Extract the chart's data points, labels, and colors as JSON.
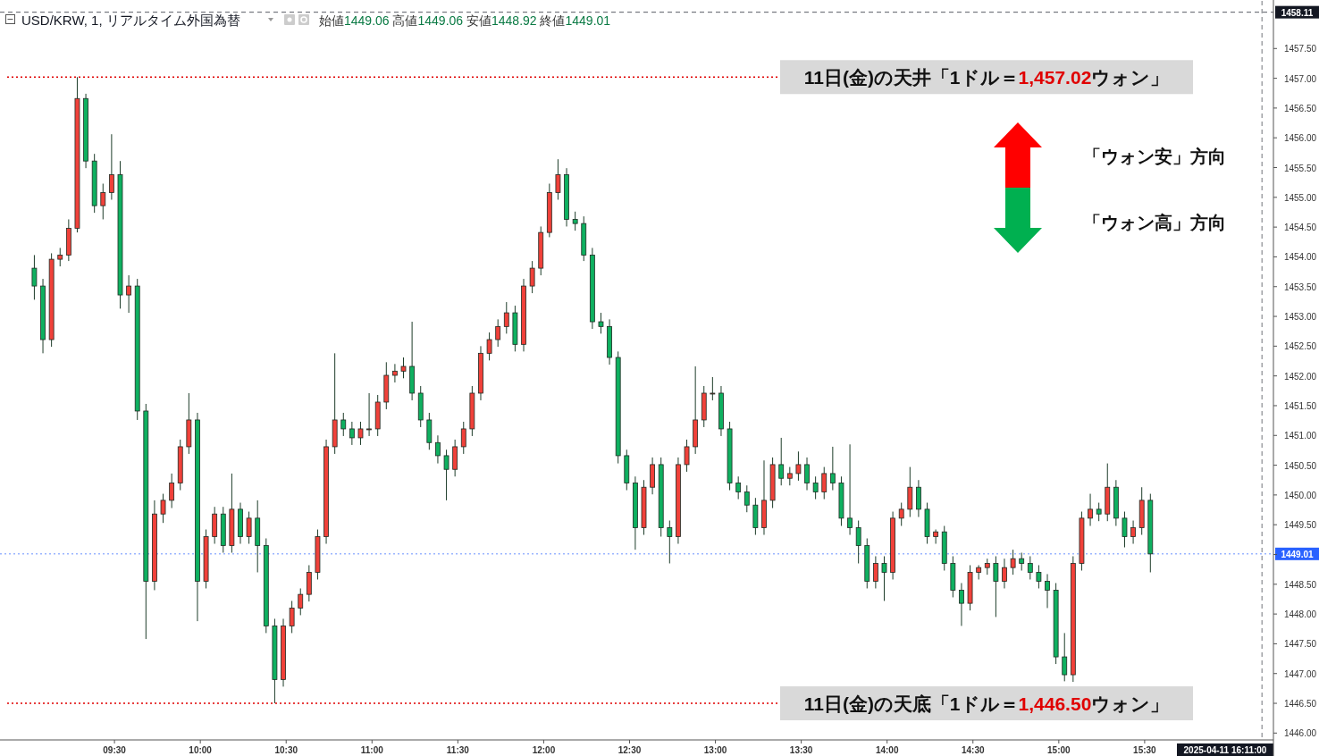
{
  "chart_data": {
    "type": "candlestick",
    "title": "USD/KRW, 1, リアルタイム外国為替",
    "subtitle": "始値1449.06 高値1449.06 安値1448.92 終値1449.01",
    "annotations": [
      "「ウォン安」方向",
      "「ウォン高」方向"
    ],
    "colors": [
      "#0fb060",
      "#0fb060",
      "#f0413a",
      "#f0413a",
      "#f0413a",
      "#f0413a",
      "#0fb060",
      "#0fb060",
      "#f0413a",
      "#f0413a",
      "#0fb060",
      "#f0413a",
      "#0fb060",
      "#0fb060",
      "#f0413a",
      "#f0413a",
      "#f0413a",
      "#f0413a",
      "#f0413a",
      "#0fb060",
      "#f0413a",
      "#f0413a",
      "#0fb060",
      "#f0413a",
      "#0fb060",
      "#f0413a",
      "#0fb060",
      "#0fb060",
      "#0fb060",
      "#f0413a",
      "#f0413a",
      "#f0413a",
      "#f0413a",
      "#f0413a",
      "#f0413a",
      "#f0413a",
      "#0fb060",
      "#0fb060",
      "#f0413a",
      "#f0413a",
      "#f0413a",
      "#f0413a",
      "#f0413a",
      "#f0413a",
      "#0fb060",
      "#0fb060",
      "#0fb060",
      "#0fb060",
      "#0fb060",
      "#f0413a",
      "#f0413a",
      "#f0413a",
      "#f0413a",
      "#f0413a",
      "#f0413a",
      "#f0413a",
      "#0fb060",
      "#f0413a",
      "#f0413a",
      "#f0413a",
      "#f0413a",
      "#f0413a",
      "#0fb060",
      "#0fb060",
      "#0fb060",
      "#0fb060",
      "#0fb060",
      "#0fb060",
      "#0fb060",
      "#0fb060",
      "#0fb060",
      "#f0413a",
      "#f0413a",
      "#0fb060",
      "#0fb060",
      "#f0413a",
      "#f0413a",
      "#f0413a",
      "#f0413a",
      "#f0413a",
      "#0fb060",
      "#0fb060",
      "#0fb060",
      "#0fb060",
      "#0fb060",
      "#f0413a",
      "#f0413a",
      "#0fb060",
      "#f0413a",
      "#f0413a",
      "#0fb060",
      "#0fb060",
      "#f0413a",
      "#0fb060",
      "#0fb060",
      "#0fb060",
      "#0fb060",
      "#0fb060",
      "#f0413a",
      "#0fb060",
      "#f0413a",
      "#f0413a",
      "#f0413a",
      "#0fb060",
      "#0fb060",
      "#f0413a",
      "#0fb060",
      "#0fb060",
      "#0fb060",
      "#f0413a",
      "#f0413a",
      "#f0413a",
      "#0fb060",
      "#f0413a",
      "#f0413a",
      "#0fb060",
      "#0fb060",
      "#0fb060",
      "#0fb060",
      "#0fb060",
      "#0fb060",
      "#f0413a",
      "#f0413a",
      "#f0413a",
      "#0fb060",
      "#f0413a",
      "#0fb060",
      "#0fb060",
      "#f0413a",
      "#f0413a",
      "#0fb060"
    ],
    "x": [
      9.0333,
      9.0833,
      9.1333,
      9.1833,
      9.2333,
      9.2833,
      9.3333,
      9.3833,
      9.4333,
      9.4833,
      9.5333,
      9.5833,
      9.6333,
      9.6833,
      9.7333,
      9.7833,
      9.8333,
      9.8833,
      9.9333,
      9.9833,
      10.0333,
      10.0833,
      10.1333,
      10.1833,
      10.2333,
      10.2833,
      10.3333,
      10.3833,
      10.4333,
      10.4833,
      10.5333,
      10.5833,
      10.6333,
      10.6833,
      10.7333,
      10.7833,
      10.8333,
      10.8833,
      10.9333,
      10.9833,
      11.0333,
      11.0833,
      11.1333,
      11.1833,
      11.2333,
      11.2833,
      11.3333,
      11.3833,
      11.4333,
      11.4833,
      11.5333,
      11.5833,
      11.6333,
      11.6833,
      11.7333,
      11.7833,
      11.8333,
      11.8833,
      11.9333,
      11.9833,
      12.0333,
      12.0833,
      12.1333,
      12.1833,
      12.2333,
      12.2833,
      12.3333,
      12.3833,
      12.4333,
      12.4833,
      12.5333,
      12.5833,
      12.6333,
      12.6833,
      12.7333,
      12.7833,
      12.8333,
      12.8833,
      12.9333,
      12.9833,
      13.0333,
      13.0833,
      13.1333,
      13.1833,
      13.2333,
      13.2833,
      13.3333,
      13.3833,
      13.4333,
      13.4833,
      13.5333,
      13.5833,
      13.6333,
      13.6833,
      13.7333,
      13.7833,
      13.8333,
      13.8833,
      13.9333,
      13.9833,
      14.0333,
      14.0833,
      14.1333,
      14.1833,
      14.2333,
      14.2833,
      14.3333,
      14.3833,
      14.4333,
      14.4833,
      14.5333,
      14.5833,
      14.6333,
      14.6833,
      14.7333,
      14.7833,
      14.8333,
      14.8833,
      14.9333,
      14.9833,
      15.0333,
      15.0833,
      15.1333,
      15.1833,
      15.2333,
      15.2833,
      15.3333,
      15.3833,
      15.4333,
      15.4833,
      15.5333
    ],
    "ohlc": [
      [
        1453.81,
        1454.03,
        1453.28,
        1453.51
      ],
      [
        1453.51,
        1453.63,
        1452.38,
        1452.61
      ],
      [
        1452.61,
        1454.06,
        1452.49,
        1453.96
      ],
      [
        1453.96,
        1454.15,
        1453.84,
        1454.03
      ],
      [
        1454.03,
        1454.63,
        1453.93,
        1454.48
      ],
      [
        1454.48,
        1457.02,
        1454.41,
        1456.66
      ],
      [
        1456.66,
        1456.74,
        1455.49,
        1455.61
      ],
      [
        1455.61,
        1455.73,
        1454.74,
        1454.86
      ],
      [
        1454.86,
        1455.23,
        1454.63,
        1455.08
      ],
      [
        1455.08,
        1456.06,
        1454.96,
        1455.38
      ],
      [
        1455.38,
        1455.61,
        1453.13,
        1453.36
      ],
      [
        1453.36,
        1453.69,
        1453.06,
        1453.51
      ],
      [
        1453.51,
        1453.63,
        1451.26,
        1451.41
      ],
      [
        1451.41,
        1451.53,
        1447.58,
        1448.55
      ],
      [
        1448.55,
        1449.91,
        1448.4,
        1449.68
      ],
      [
        1449.68,
        1450.02,
        1449.53,
        1449.91
      ],
      [
        1449.91,
        1450.36,
        1449.78,
        1450.2
      ],
      [
        1450.2,
        1450.93,
        1450.08,
        1450.81
      ],
      [
        1450.81,
        1451.71,
        1450.69,
        1451.26
      ],
      [
        1451.26,
        1451.38,
        1447.88,
        1448.55
      ],
      [
        1448.55,
        1449.42,
        1448.43,
        1449.3
      ],
      [
        1449.3,
        1449.8,
        1449.18,
        1449.68
      ],
      [
        1449.68,
        1449.8,
        1449.03,
        1449.15
      ],
      [
        1449.15,
        1450.36,
        1449.03,
        1449.76
      ],
      [
        1449.76,
        1449.87,
        1449.18,
        1449.3
      ],
      [
        1449.3,
        1449.72,
        1449.18,
        1449.61
      ],
      [
        1449.61,
        1449.91,
        1448.7,
        1449.15
      ],
      [
        1449.15,
        1449.27,
        1447.68,
        1447.8
      ],
      [
        1447.8,
        1447.92,
        1446.5,
        1446.9
      ],
      [
        1446.9,
        1447.92,
        1446.78,
        1447.8
      ],
      [
        1447.8,
        1448.22,
        1447.68,
        1448.1
      ],
      [
        1448.1,
        1448.43,
        1447.98,
        1448.33
      ],
      [
        1448.33,
        1448.82,
        1448.21,
        1448.7
      ],
      [
        1448.7,
        1449.42,
        1448.58,
        1449.3
      ],
      [
        1449.3,
        1450.93,
        1449.18,
        1450.81
      ],
      [
        1450.81,
        1452.38,
        1450.69,
        1451.26
      ],
      [
        1451.26,
        1451.38,
        1450.99,
        1451.11
      ],
      [
        1451.11,
        1451.23,
        1450.84,
        1450.96
      ],
      [
        1450.96,
        1451.23,
        1450.84,
        1451.11
      ],
      [
        1451.11,
        1451.71,
        1450.99,
        1451.11
      ],
      [
        1451.11,
        1451.68,
        1450.99,
        1451.56
      ],
      [
        1451.56,
        1452.23,
        1451.44,
        1452.01
      ],
      [
        1452.01,
        1452.2,
        1451.89,
        1452.08
      ],
      [
        1452.08,
        1452.31,
        1451.96,
        1452.16
      ],
      [
        1452.16,
        1452.91,
        1451.59,
        1451.71
      ],
      [
        1451.71,
        1451.83,
        1451.14,
        1451.26
      ],
      [
        1451.26,
        1451.38,
        1450.76,
        1450.88
      ],
      [
        1450.88,
        1451.0,
        1450.53,
        1450.66
      ],
      [
        1450.66,
        1450.76,
        1449.91,
        1450.43
      ],
      [
        1450.43,
        1450.93,
        1450.31,
        1450.81
      ],
      [
        1450.81,
        1451.23,
        1450.69,
        1451.11
      ],
      [
        1451.11,
        1451.83,
        1450.99,
        1451.71
      ],
      [
        1451.71,
        1452.5,
        1451.59,
        1452.38
      ],
      [
        1452.38,
        1452.73,
        1452.26,
        1452.61
      ],
      [
        1452.61,
        1452.95,
        1452.49,
        1452.83
      ],
      [
        1452.83,
        1453.24,
        1452.71,
        1453.06
      ],
      [
        1453.06,
        1453.18,
        1452.41,
        1452.53
      ],
      [
        1452.53,
        1453.63,
        1452.41,
        1453.51
      ],
      [
        1453.51,
        1453.93,
        1453.39,
        1453.81
      ],
      [
        1453.81,
        1454.51,
        1453.69,
        1454.41
      ],
      [
        1454.41,
        1455.23,
        1454.33,
        1455.08
      ],
      [
        1455.08,
        1455.64,
        1454.96,
        1455.38
      ],
      [
        1455.38,
        1455.49,
        1454.51,
        1454.63
      ],
      [
        1454.63,
        1454.76,
        1454.44,
        1454.56
      ],
      [
        1454.56,
        1454.68,
        1453.93,
        1454.03
      ],
      [
        1454.03,
        1454.15,
        1452.79,
        1452.91
      ],
      [
        1452.91,
        1453.06,
        1452.71,
        1452.83
      ],
      [
        1452.83,
        1452.95,
        1452.19,
        1452.31
      ],
      [
        1452.31,
        1452.41,
        1450.53,
        1450.66
      ],
      [
        1450.66,
        1450.76,
        1450.08,
        1450.2
      ],
      [
        1450.2,
        1450.31,
        1449.08,
        1449.45
      ],
      [
        1449.45,
        1450.25,
        1449.33,
        1450.13
      ],
      [
        1450.13,
        1450.63,
        1450.01,
        1450.51
      ],
      [
        1450.51,
        1450.63,
        1449.3,
        1449.45
      ],
      [
        1449.45,
        1449.57,
        1448.85,
        1449.3
      ],
      [
        1449.3,
        1450.63,
        1449.18,
        1450.51
      ],
      [
        1450.51,
        1450.93,
        1450.39,
        1450.81
      ],
      [
        1450.81,
        1452.16,
        1450.69,
        1451.26
      ],
      [
        1451.26,
        1451.83,
        1451.14,
        1451.71
      ],
      [
        1451.71,
        1451.98,
        1451.59,
        1451.71
      ],
      [
        1451.71,
        1451.83,
        1450.99,
        1451.11
      ],
      [
        1451.11,
        1451.23,
        1450.08,
        1450.2
      ],
      [
        1450.2,
        1450.31,
        1449.93,
        1450.05
      ],
      [
        1450.05,
        1450.16,
        1449.71,
        1449.83
      ],
      [
        1449.83,
        1449.95,
        1449.33,
        1449.45
      ],
      [
        1449.45,
        1450.58,
        1449.33,
        1449.91
      ],
      [
        1449.91,
        1450.63,
        1449.78,
        1450.51
      ],
      [
        1450.51,
        1450.96,
        1450.16,
        1450.28
      ],
      [
        1450.28,
        1450.47,
        1450.16,
        1450.36
      ],
      [
        1450.36,
        1450.73,
        1450.24,
        1450.51
      ],
      [
        1450.51,
        1450.63,
        1450.08,
        1450.2
      ],
      [
        1450.2,
        1450.31,
        1449.93,
        1450.05
      ],
      [
        1450.05,
        1450.47,
        1449.93,
        1450.36
      ],
      [
        1450.36,
        1450.81,
        1450.08,
        1450.2
      ],
      [
        1450.2,
        1450.31,
        1449.48,
        1449.61
      ],
      [
        1449.61,
        1450.85,
        1449.33,
        1449.45
      ],
      [
        1449.45,
        1449.57,
        1448.85,
        1449.15
      ],
      [
        1449.15,
        1449.27,
        1448.43,
        1448.55
      ],
      [
        1448.55,
        1448.97,
        1448.43,
        1448.85
      ],
      [
        1448.85,
        1448.97,
        1448.22,
        1448.7
      ],
      [
        1448.7,
        1449.72,
        1448.58,
        1449.61
      ],
      [
        1449.61,
        1449.87,
        1449.48,
        1449.76
      ],
      [
        1449.76,
        1450.47,
        1449.63,
        1450.13
      ],
      [
        1450.13,
        1450.25,
        1449.63,
        1449.76
      ],
      [
        1449.76,
        1449.87,
        1449.18,
        1449.3
      ],
      [
        1449.3,
        1449.42,
        1449.18,
        1449.38
      ],
      [
        1449.38,
        1449.48,
        1448.73,
        1448.85
      ],
      [
        1448.85,
        1448.97,
        1448.28,
        1448.4
      ],
      [
        1448.4,
        1448.52,
        1447.8,
        1448.18
      ],
      [
        1448.18,
        1448.82,
        1448.06,
        1448.7
      ],
      [
        1448.7,
        1448.82,
        1448.58,
        1448.78
      ],
      [
        1448.78,
        1448.93,
        1448.66,
        1448.85
      ],
      [
        1448.85,
        1448.97,
        1447.95,
        1448.55
      ],
      [
        1448.55,
        1448.93,
        1448.43,
        1448.78
      ],
      [
        1448.78,
        1449.08,
        1448.66,
        1448.93
      ],
      [
        1448.93,
        1449.03,
        1448.73,
        1448.85
      ],
      [
        1448.85,
        1448.97,
        1448.58,
        1448.7
      ],
      [
        1448.7,
        1448.82,
        1448.43,
        1448.55
      ],
      [
        1448.55,
        1448.67,
        1448.1,
        1448.4
      ],
      [
        1448.4,
        1448.52,
        1447.16,
        1447.28
      ],
      [
        1447.28,
        1447.68,
        1446.87,
        1446.98
      ],
      [
        1446.98,
        1448.97,
        1446.86,
        1448.85
      ],
      [
        1448.85,
        1449.72,
        1448.73,
        1449.61
      ],
      [
        1449.61,
        1450.02,
        1449.48,
        1449.76
      ],
      [
        1449.76,
        1449.87,
        1449.56,
        1449.68
      ],
      [
        1449.68,
        1450.53,
        1449.56,
        1450.13
      ],
      [
        1450.13,
        1450.25,
        1449.48,
        1449.61
      ],
      [
        1449.61,
        1449.72,
        1449.12,
        1449.3
      ],
      [
        1449.3,
        1449.57,
        1449.18,
        1449.45
      ],
      [
        1449.45,
        1450.13,
        1449.33,
        1449.91
      ],
      [
        1449.91,
        1450.02,
        1448.7,
        1449.01
      ]
    ],
    "xlim": [
      8.8333,
      16.25
    ],
    "ylim": [
      1445.9,
      1458.3
    ],
    "xticks": [
      {
        "value": 9.5,
        "label": "09:30"
      },
      {
        "value": 10,
        "label": "10:00"
      },
      {
        "value": 10.5,
        "label": "10:30"
      },
      {
        "value": 11,
        "label": "11:00"
      },
      {
        "value": 11.5,
        "label": "11:30"
      },
      {
        "value": 12,
        "label": "12:00"
      },
      {
        "value": 12.5,
        "label": "12:30"
      },
      {
        "value": 13,
        "label": "13:00"
      },
      {
        "value": 13.5,
        "label": "13:30"
      },
      {
        "value": 14,
        "label": "14:00"
      },
      {
        "value": 14.5,
        "label": "14:30"
      },
      {
        "value": 15,
        "label": "15:00"
      },
      {
        "value": 15.5,
        "label": "15:30"
      }
    ],
    "yticks": [
      {
        "value": 1446,
        "label": "1446.00"
      },
      {
        "value": 1446.5,
        "label": "1446.50"
      },
      {
        "value": 1447,
        "label": "1447.00"
      },
      {
        "value": 1447.5,
        "label": "1447.50"
      },
      {
        "value": 1448,
        "label": "1448.00"
      },
      {
        "value": 1448.5,
        "label": "1448.50"
      },
      {
        "value": 1449,
        "label": null
      },
      {
        "value": 1449.5,
        "label": "1449.50"
      },
      {
        "value": 1450,
        "label": "1450.00"
      },
      {
        "value": 1450.5,
        "label": "1450.50"
      },
      {
        "value": 1451,
        "label": "1451.00"
      },
      {
        "value": 1451.5,
        "label": "1451.50"
      },
      {
        "value": 1452,
        "label": "1452.00"
      },
      {
        "value": 1452.5,
        "label": "1452.50"
      },
      {
        "value": 1453,
        "label": "1453.00"
      },
      {
        "value": 1453.5,
        "label": "1453.50"
      },
      {
        "value": 1454,
        "label": "1454.00"
      },
      {
        "value": 1454.5,
        "label": "1454.50"
      },
      {
        "value": 1455,
        "label": "1455.00"
      },
      {
        "value": 1455.5,
        "label": "1455.50"
      },
      {
        "value": 1456,
        "label": "1456.00"
      },
      {
        "value": 1456.5,
        "label": "1456.50"
      },
      {
        "value": 1457,
        "label": "1457.00"
      },
      {
        "value": 1457.5,
        "label": "1457.50"
      }
    ],
    "ref_lines": [
      {
        "axis": "y",
        "value": 1457.02,
        "label": "11日(金)の天井「1ドル＝1,457.02ウォン」",
        "color": "#e00000",
        "line_style": "dotted"
      },
      {
        "axis": "y",
        "value": 1446.5,
        "label": "11日(金)の天底「1ドル＝1,446.50ウォン」",
        "color": "#e00000",
        "line_style": "dotted"
      },
      {
        "axis": "y",
        "value": 1449.01,
        "label": "1449.01",
        "color": "#2962ff",
        "line_style": "dotted"
      },
      {
        "axis": "y",
        "value": 1458.11,
        "label": "1458.11",
        "color": "#131722",
        "line_style": "dashed"
      },
      {
        "axis": "x",
        "value": 16.1833,
        "label": "2025-04-11 16:11:00",
        "color": "#131722",
        "line_style": "dashed"
      }
    ]
  }
}
